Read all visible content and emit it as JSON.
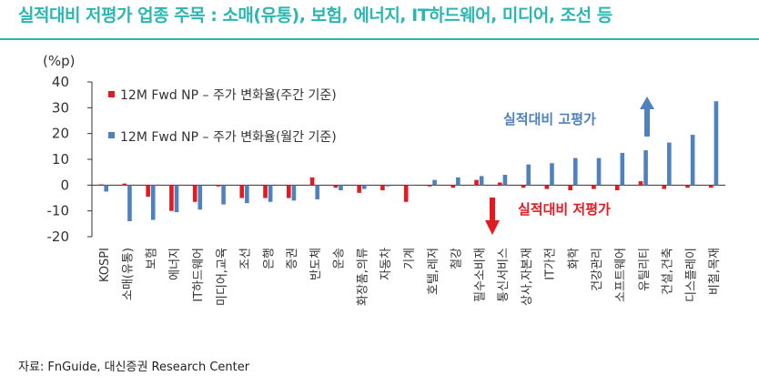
{
  "title": "실적대비 저평가 업종 주목 : 소매(유통), 보험, 에너지, IT하드웨어, 미디어, 조선 등",
  "source": "자료: FnGuide, 대신증권 Research Center",
  "colors": {
    "weekly": "#e21a22",
    "monthly": "#4f81bd",
    "title": "#2bb7b0"
  },
  "chart_data": {
    "type": "bar",
    "ylabel": "(%p)",
    "ylim": [
      -20,
      40
    ],
    "yticks": [
      40,
      30,
      20,
      10,
      0,
      -10,
      -20
    ],
    "categories": [
      "KOSPI",
      "소매(유통)",
      "보험",
      "에너지",
      "IT하드웨어",
      "미디어,교육",
      "조선",
      "은행",
      "증권",
      "반도체",
      "운송",
      "화장품,의류",
      "자동차",
      "기계",
      "호텔,레저",
      "철강",
      "필수소비재",
      "통신서비스",
      "상사,자본재",
      "IT가전",
      "화학",
      "건강관리",
      "소프트웨어",
      "유틸리티",
      "건설,건축",
      "디스플레이",
      "비철,목재"
    ],
    "series": [
      {
        "name": "12M Fwd NP – 주가 변화율(주간 기준)",
        "color": "#e21a22",
        "values": [
          0.3,
          0.6,
          -4.5,
          -10.0,
          -6.5,
          -0.5,
          -5.0,
          -5.0,
          -5.0,
          3.0,
          -1.0,
          -3.0,
          -2.0,
          -6.5,
          -0.5,
          -1.0,
          2.0,
          1.0,
          -1.0,
          -1.5,
          -2.0,
          -1.5,
          -2.0,
          1.5,
          -1.5,
          -1.0,
          -1.0
        ]
      },
      {
        "name": "12M Fwd NP – 주가 변화율(월간 기준)",
        "color": "#4f81bd",
        "values": [
          -2.5,
          -14.0,
          -13.5,
          -10.5,
          -9.5,
          -7.5,
          -7.0,
          -6.5,
          -6.0,
          -5.5,
          -2.0,
          -1.5,
          -0.5,
          0.0,
          2.0,
          3.0,
          3.5,
          4.0,
          8.0,
          8.5,
          10.5,
          10.5,
          12.5,
          13.5,
          16.5,
          19.5,
          32.5
        ]
      }
    ],
    "annotations": [
      {
        "text": "실적대비 고평가",
        "color": "#4f81bd"
      },
      {
        "text": "실적대비 저평가",
        "color": "#e21a22"
      }
    ],
    "legend_position": "top-left",
    "grid": false
  }
}
